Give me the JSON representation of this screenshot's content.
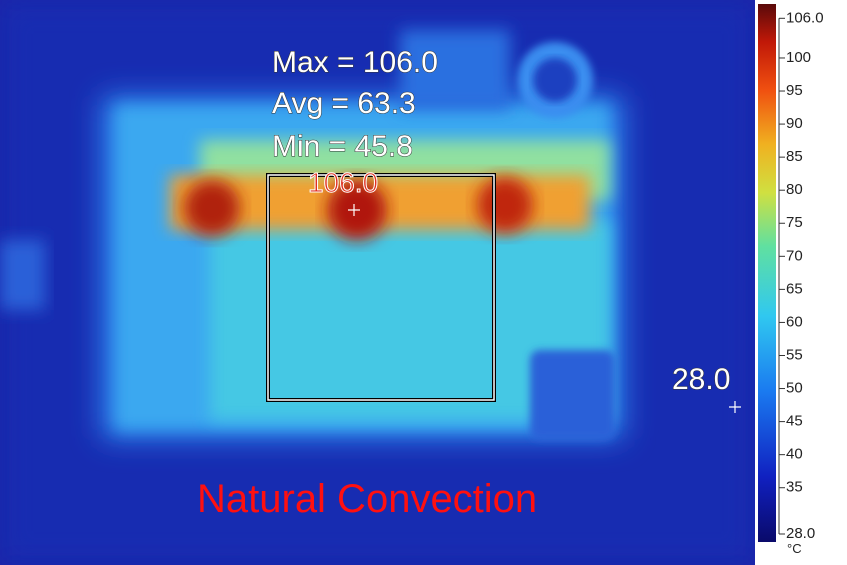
{
  "overlay": {
    "max": "Max = 106.0",
    "avg": "Avg = 63.3",
    "min": "Min = 45.8",
    "hotspot": "106.0",
    "coldspot": "28.0",
    "caption": "Natural Convection"
  },
  "colorbar": {
    "range": [
      28,
      106
    ],
    "unit": "°C",
    "ticks": [
      {
        "value": 106,
        "label": "106.0"
      },
      100,
      95,
      90,
      85,
      80,
      75,
      70,
      65,
      60,
      55,
      50,
      45,
      40,
      35,
      {
        "value": 28,
        "label": "28.0"
      }
    ]
  }
}
